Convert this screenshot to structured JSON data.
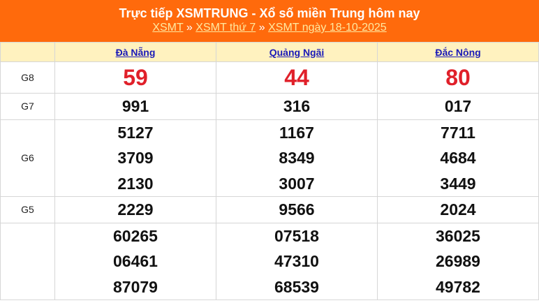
{
  "header": {
    "title": "Trực tiếp XSMTRUNG - Xổ số miền Trung hôm nay",
    "breadcrumbs": [
      "XSMT",
      "XSMT thứ 7",
      "XSMT ngày 18-10-2025"
    ],
    "separator": "»"
  },
  "provinces": [
    "Đà Nẵng",
    "Quảng Ngãi",
    "Đắc Nông"
  ],
  "prizes": [
    {
      "label": "G8",
      "values": [
        [
          "59"
        ],
        [
          "44"
        ],
        [
          "80"
        ]
      ]
    },
    {
      "label": "G7",
      "values": [
        [
          "991"
        ],
        [
          "316"
        ],
        [
          "017"
        ]
      ]
    },
    {
      "label": "G6",
      "values": [
        [
          "5127",
          "3709",
          "2130"
        ],
        [
          "1167",
          "8349",
          "3007"
        ],
        [
          "7711",
          "4684",
          "3449"
        ]
      ]
    },
    {
      "label": "G5",
      "values": [
        [
          "2229"
        ],
        [
          "9566"
        ],
        [
          "2024"
        ]
      ]
    },
    {
      "label": "",
      "values": [
        [
          "60265",
          "06461",
          "87079"
        ],
        [
          "07518",
          "47310",
          "68539"
        ],
        [
          "36025",
          "26989",
          "49782"
        ]
      ]
    }
  ],
  "colors": {
    "header_bg": "#ff6a0c",
    "special_prize": "#e0202a",
    "province_header_bg": "#fff2bf"
  }
}
